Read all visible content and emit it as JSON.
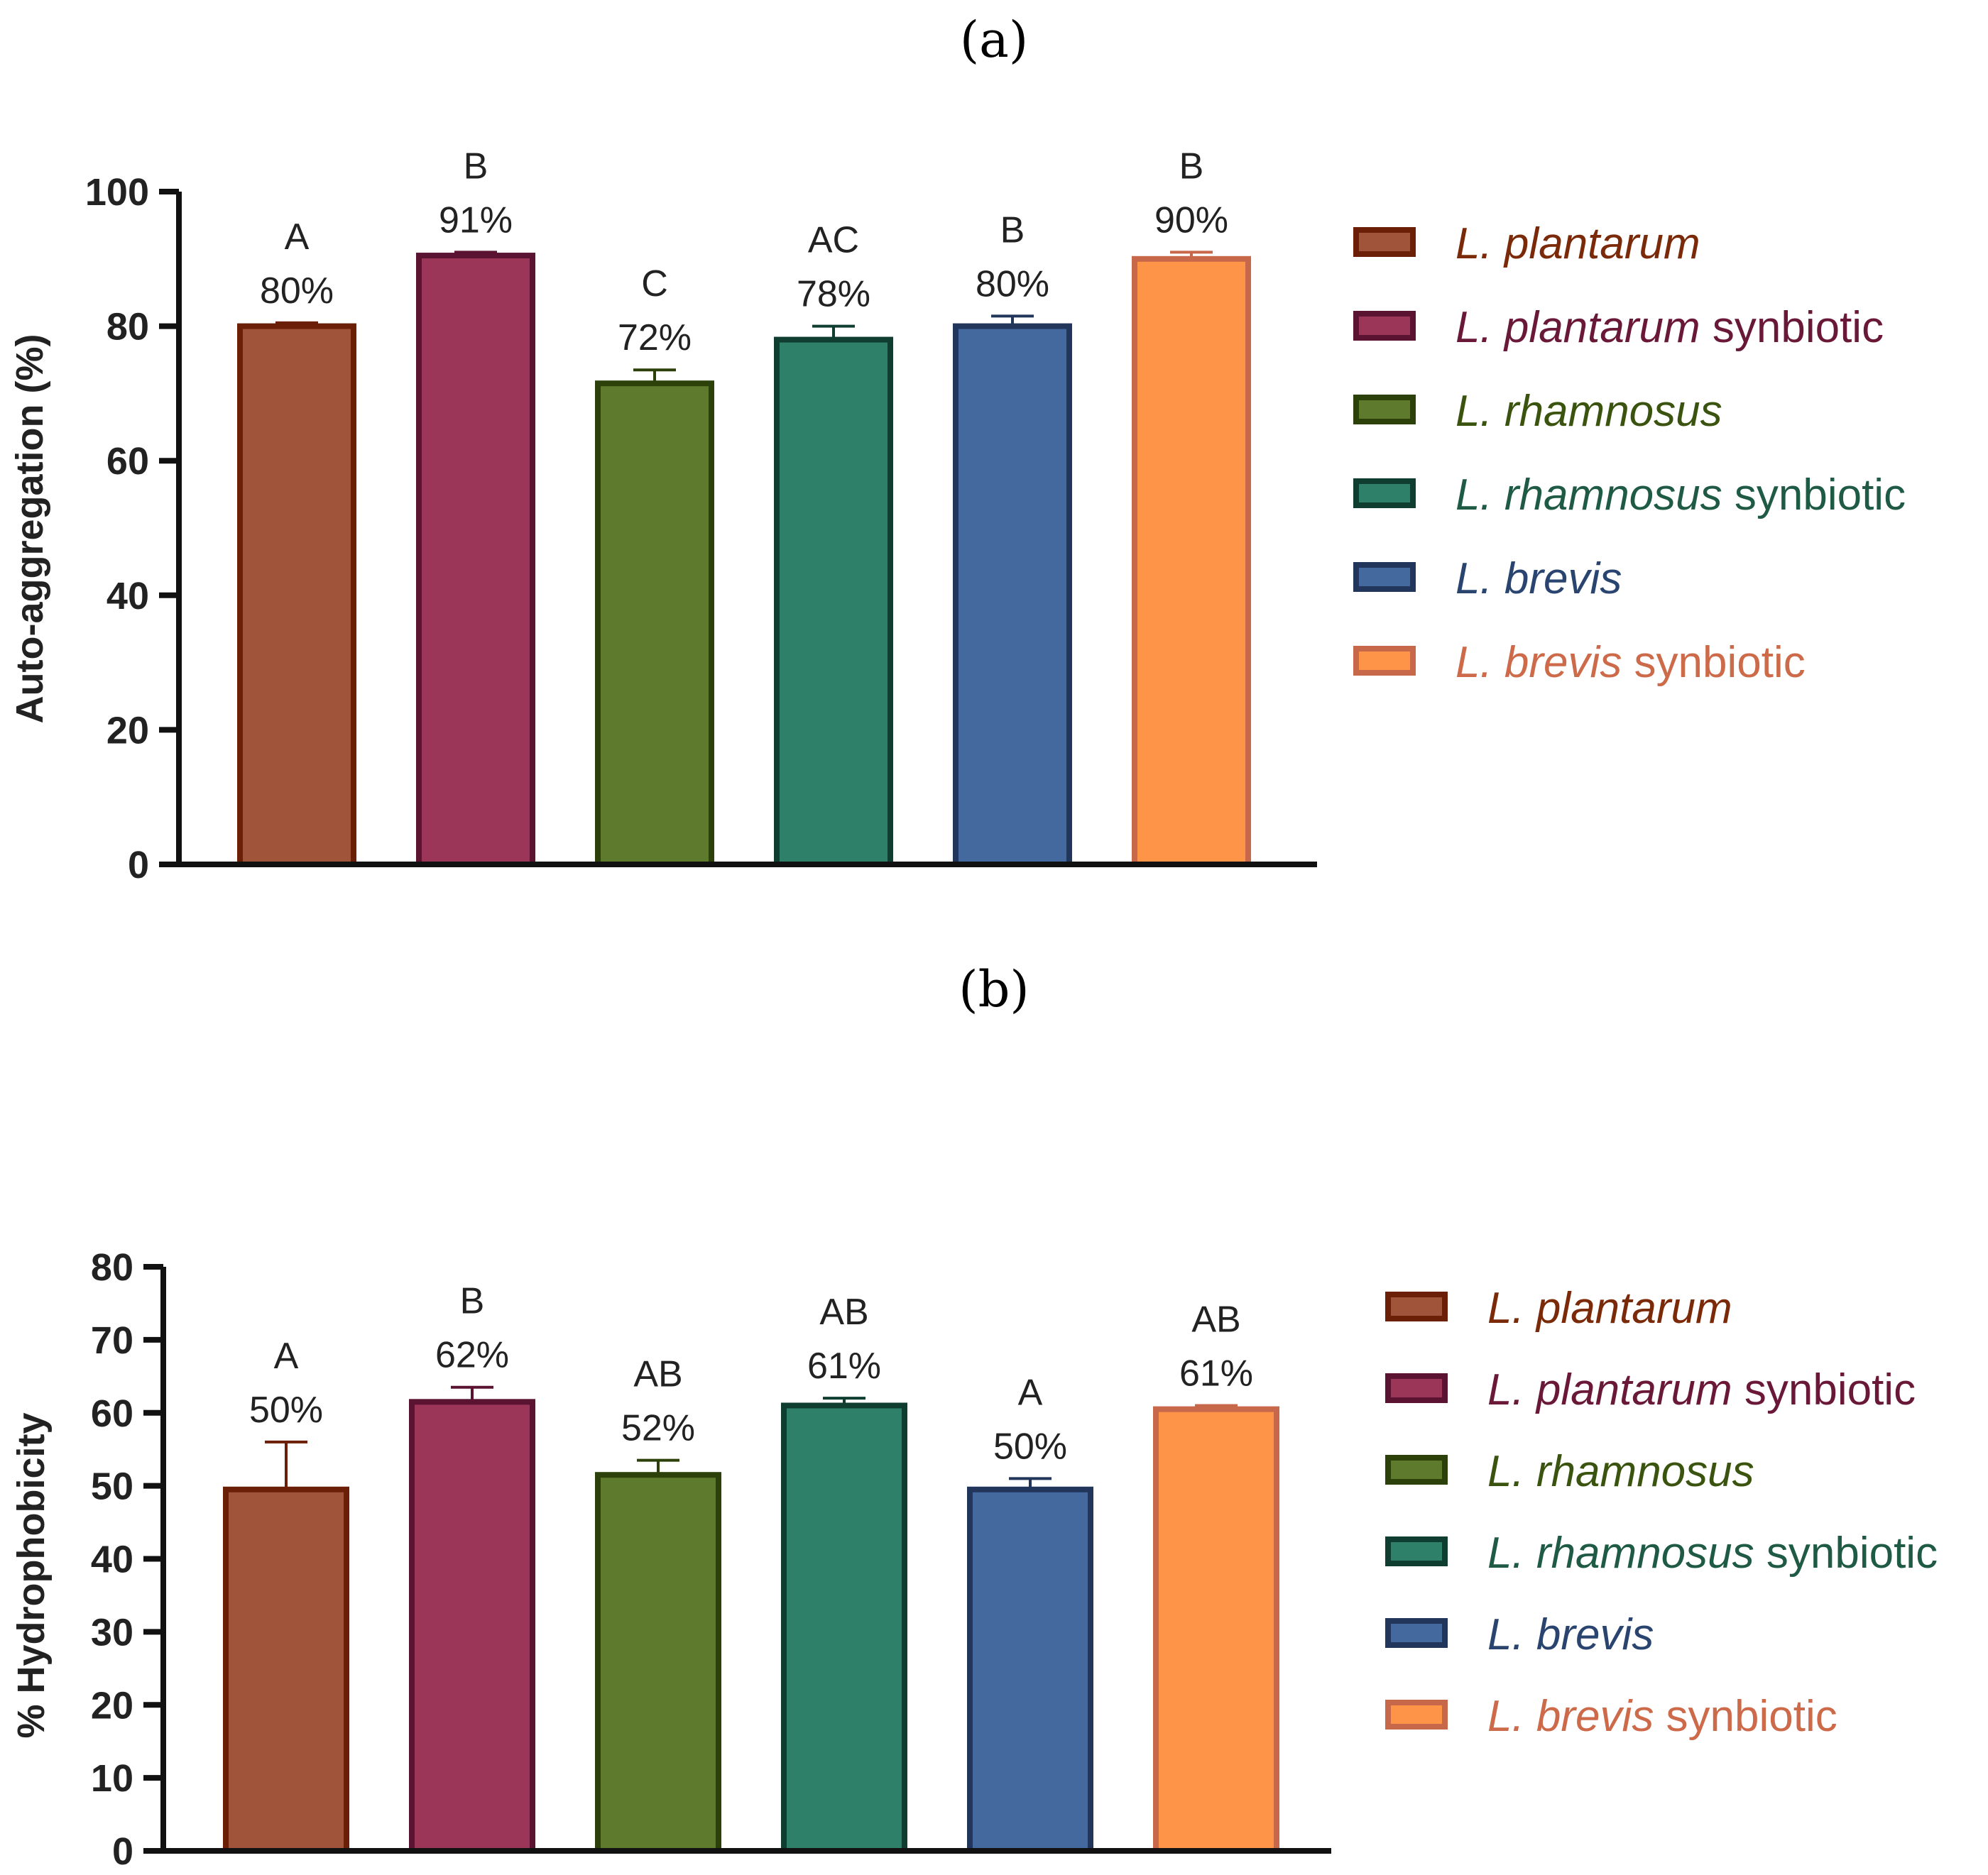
{
  "chart_data": [
    {
      "type": "bar",
      "panel_label": "(a)",
      "title": "",
      "xlabel": "",
      "ylabel": "Auto-aggregation (%)",
      "ylim": [
        0,
        100
      ],
      "yticks": [
        "0",
        "20",
        "40",
        "60",
        "80",
        "100"
      ],
      "categories": [
        "L. plantarum",
        "L. plantarum synbiotic",
        "L. rhamnosus",
        "L. rhamnosus synbiotic",
        "L. brevis",
        "L. brevis synbiotic"
      ],
      "values": [
        80,
        90.5,
        71.5,
        78,
        80,
        90
      ],
      "errors": [
        0.5,
        0.5,
        2,
        2,
        1.5,
        1
      ],
      "value_labels": [
        "80%",
        "91%",
        "72%",
        "78%",
        "80%",
        "90%"
      ],
      "letters": [
        "A",
        "B",
        "C",
        "AC",
        "B",
        "B"
      ],
      "legend": [
        {
          "italic": "L. plantarum",
          "rest": ""
        },
        {
          "italic": "L. plantarum",
          "rest": " synbiotic"
        },
        {
          "italic": "L. rhamnosus",
          "rest": ""
        },
        {
          "italic": "L. rhamnosus",
          "rest": " synbiotic"
        },
        {
          "italic": "L. brevis",
          "rest": ""
        },
        {
          "italic": "L. brevis",
          "rest": " synbiotic"
        }
      ],
      "legend_position": "right"
    },
    {
      "type": "bar",
      "panel_label": "(b)",
      "title": "",
      "xlabel": "",
      "ylabel": "% Hydrophobicity",
      "ylim": [
        0,
        80
      ],
      "yticks": [
        "0",
        "10",
        "20",
        "30",
        "40",
        "50",
        "60",
        "70",
        "80"
      ],
      "categories": [
        "L. plantarum",
        "L. plantarum synbiotic",
        "L. rhamnosus",
        "L. rhamnosus synbiotic",
        "L. brevis",
        "L. brevis synbiotic"
      ],
      "values": [
        49.5,
        61.5,
        51.5,
        61,
        49.5,
        60.5
      ],
      "errors": [
        6.5,
        2,
        2,
        1,
        1.5,
        0.5
      ],
      "value_labels": [
        "50%",
        "62%",
        "52%",
        "61%",
        "50%",
        "61%"
      ],
      "letters": [
        "A",
        "B",
        "AB",
        "AB",
        "A",
        "AB"
      ],
      "legend": [
        {
          "italic": "L. plantarum",
          "rest": ""
        },
        {
          "italic": "L. plantarum",
          "rest": " synbiotic"
        },
        {
          "italic": "L. rhamnosus",
          "rest": ""
        },
        {
          "italic": "L. rhamnosus",
          "rest": " synbiotic"
        },
        {
          "italic": "L. brevis",
          "rest": ""
        },
        {
          "italic": "L. brevis",
          "rest": " synbiotic"
        }
      ],
      "legend_position": "right"
    }
  ],
  "colors": {
    "fills": [
      "#a0543a",
      "#9b3659",
      "#5e7a2c",
      "#2e8168",
      "#43699f",
      "#fd9447"
    ],
    "borders": [
      "#6b1f06",
      "#5a1331",
      "#2c400a",
      "#0f3d2f",
      "#22365c",
      "#c8684a"
    ],
    "legend_text": [
      "#7a2a08",
      "#6a1838",
      "#3a5410",
      "#1f5a45",
      "#2a4470",
      "#cc6a4a"
    ]
  }
}
